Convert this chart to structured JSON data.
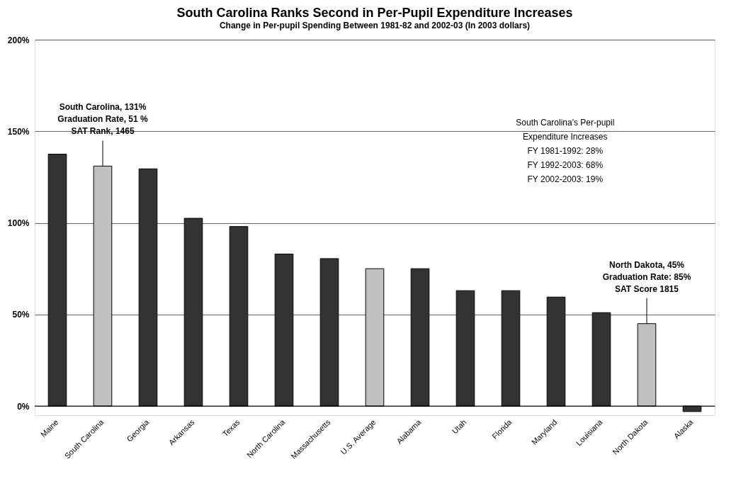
{
  "chart_data": {
    "type": "bar",
    "title": "South Carolina Ranks Second in Per-Pupil Expenditure Increases",
    "subtitle": "Change in Per-pupil Spending Between 1981-82 and 2002-03 (In 2003 dollars)",
    "categories": [
      "Maine",
      "South Carolina",
      "Georgia",
      "Arkansas",
      "Texas",
      "North Carolina",
      "Massachusetts",
      "U.S.  Average",
      "Alabama",
      "Utah",
      "Florida",
      "Maryland",
      "Louisiana",
      "North Dakota",
      "Alaska"
    ],
    "values": [
      137.5,
      131,
      129.5,
      102.5,
      98,
      83,
      80.5,
      75,
      75,
      63,
      63,
      59.5,
      51,
      45,
      -3
    ],
    "colors": [
      "#333333",
      "#c0c0c0",
      "#333333",
      "#333333",
      "#333333",
      "#333333",
      "#333333",
      "#c0c0c0",
      "#333333",
      "#333333",
      "#333333",
      "#333333",
      "#333333",
      "#c0c0c0",
      "#333333"
    ],
    "ylim": [
      -5,
      200
    ],
    "yticks": [
      {
        "value": 0,
        "label": "0%"
      },
      {
        "value": 50,
        "label": "50%"
      },
      {
        "value": 100,
        "label": "100%"
      },
      {
        "value": 150,
        "label": "150%"
      },
      {
        "value": 200,
        "label": "200%"
      }
    ],
    "grid": "y",
    "legend": false,
    "annotations": [
      {
        "text": "South Carolina, 131%\nGraduation Rate, 51 %\nSAT Rank, 1465",
        "x": "South Carolina",
        "y": 131
      },
      {
        "text": "North Dakota, 45%\nGraduation Rate: 85%\nSAT Score 1815",
        "x": "North Dakota",
        "y": 45
      },
      "South Carolina's Per-pupil\nExpenditure Increases\nFY 1981-1992: 28%\nFY 1992-2003: 68%\nFY 2002-2003: 19%"
    ]
  }
}
